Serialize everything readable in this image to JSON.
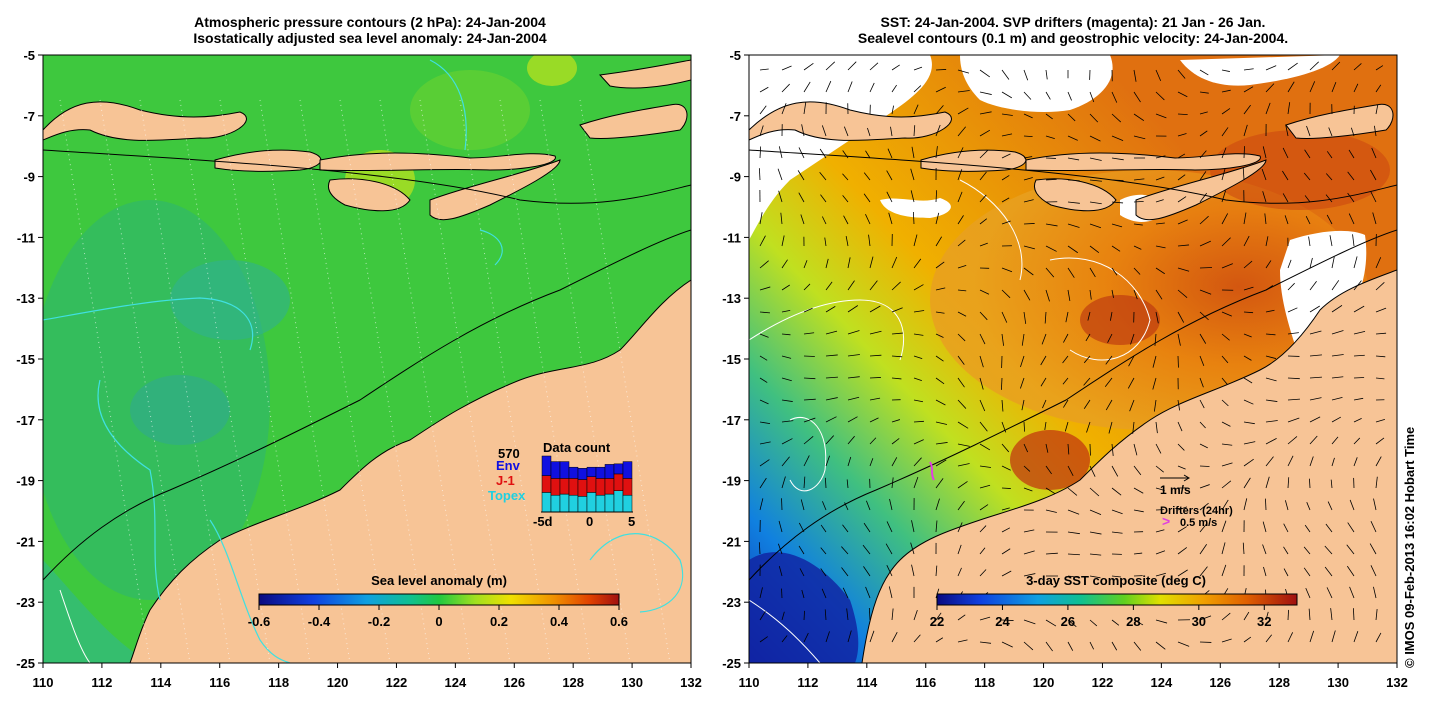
{
  "left_panel": {
    "title_line1": "Atmospheric pressure contours (2 hPa): 24-Jan-2004",
    "title_line2": "Isostatically adjusted sea level anomaly: 24-Jan-2004",
    "colorbar": {
      "label": "Sea level anomaly (m)",
      "ticks": [
        "-0.6",
        "-0.4",
        "-0.2",
        "0",
        "0.2",
        "0.4",
        "0.6"
      ],
      "range": [
        -0.6,
        0.6
      ]
    },
    "data_count": {
      "title": "Data count",
      "total": "570",
      "legend": [
        {
          "name": "Env",
          "color": "#1010e0"
        },
        {
          "name": "J-1",
          "color": "#e01010"
        },
        {
          "name": "Topex",
          "color": "#20d0e0"
        }
      ],
      "axis_ticks": [
        "-5d",
        "0",
        "5"
      ],
      "bars": [
        {
          "topex": 0.35,
          "j1": 0.3,
          "env": 0.35
        },
        {
          "topex": 0.3,
          "j1": 0.3,
          "env": 0.3
        },
        {
          "topex": 0.32,
          "j1": 0.28,
          "env": 0.3
        },
        {
          "topex": 0.3,
          "j1": 0.3,
          "env": 0.2
        },
        {
          "topex": 0.28,
          "j1": 0.3,
          "env": 0.2
        },
        {
          "topex": 0.35,
          "j1": 0.28,
          "env": 0.17
        },
        {
          "topex": 0.3,
          "j1": 0.3,
          "env": 0.2
        },
        {
          "topex": 0.32,
          "j1": 0.28,
          "env": 0.25
        },
        {
          "topex": 0.38,
          "j1": 0.3,
          "env": 0.18
        },
        {
          "topex": 0.3,
          "j1": 0.3,
          "env": 0.3
        }
      ]
    }
  },
  "right_panel": {
    "title_line1": "SST: 24-Jan-2004. SVP drifters (magenta): 21 Jan - 26 Jan.",
    "title_line2": "Sealevel contours (0.1 m) and geostrophic velocity: 24-Jan-2004.",
    "colorbar": {
      "label": "3-day SST composite (deg C)",
      "ticks": [
        "22",
        "24",
        "26",
        "28",
        "30",
        "32"
      ],
      "range": [
        22,
        33
      ]
    },
    "velocity_scale": "1 m/s",
    "drifters_label": "Drifters (24hr)",
    "drifters_speed": "0.5 m/s"
  },
  "axes": {
    "lon_ticks": [
      "110",
      "112",
      "114",
      "116",
      "118",
      "120",
      "122",
      "124",
      "126",
      "128",
      "130",
      "132"
    ],
    "lat_ticks": [
      "-5",
      "-7",
      "-9",
      "-11",
      "-13",
      "-15",
      "-17",
      "-19",
      "-21",
      "-23",
      "-25"
    ],
    "lon_range": [
      110,
      132
    ],
    "lat_range": [
      -25,
      -5
    ]
  },
  "credit": "© IMOS 09-Feb-2013 16:02 Hobart Time",
  "colors": {
    "land": "#f7c496",
    "ocean_sla": "#3ec83e",
    "cloud": "#ffffff",
    "coast": "#000000",
    "drifter": "#e040e0"
  }
}
